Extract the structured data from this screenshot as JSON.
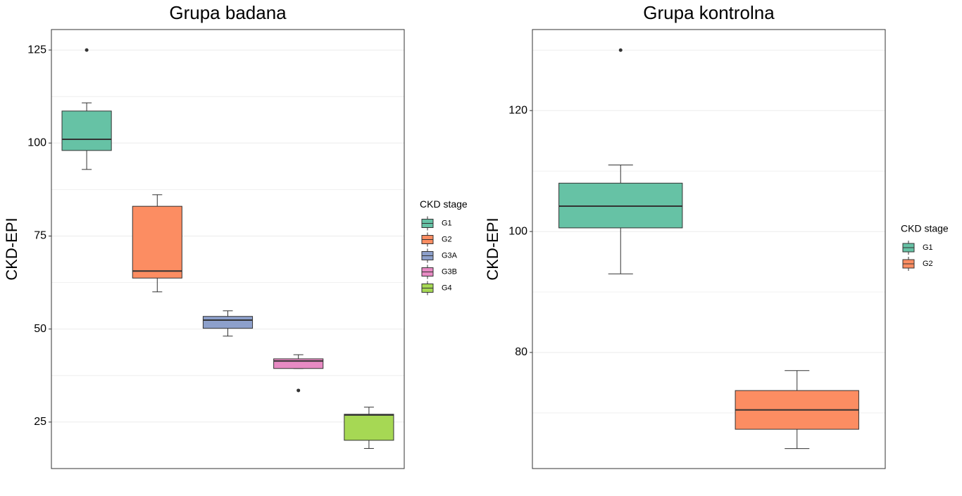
{
  "chart_data": [
    {
      "type": "boxplot",
      "title": "Grupa badana",
      "ylabel": "CKD-EPI",
      "legend_title": "CKD stage",
      "ylim": [
        12.5,
        130.5
      ],
      "yticks": [
        25,
        50,
        75,
        100,
        125
      ],
      "grid": true,
      "series": [
        {
          "name": "G1",
          "color": "#66c2a5",
          "min": 92.9,
          "q1": 98,
          "median": 101,
          "q3": 108.6,
          "max": 110.8,
          "outliers": [
            125
          ]
        },
        {
          "name": "G2",
          "color": "#fc8d62",
          "min": 60,
          "q1": 63.7,
          "median": 65.6,
          "q3": 83,
          "max": 86.1,
          "outliers": []
        },
        {
          "name": "G3A",
          "color": "#8da0cb",
          "min": 48.1,
          "q1": 50.2,
          "median": 52.4,
          "q3": 53.4,
          "max": 54.9,
          "outliers": []
        },
        {
          "name": "G3B",
          "color": "#e78ac3",
          "min": 39.4,
          "q1": 39.4,
          "median": 41.4,
          "q3": 42,
          "max": 43.1,
          "outliers": [
            33.5
          ]
        },
        {
          "name": "G4",
          "color": "#a6d854",
          "min": 17.9,
          "q1": 20.1,
          "median": 26.9,
          "q3": 27.1,
          "max": 29,
          "outliers": []
        }
      ]
    },
    {
      "type": "boxplot",
      "title": "Grupa kontrolna",
      "ylabel": "CKD-EPI",
      "legend_title": "CKD stage",
      "ylim": [
        60.8,
        133.4
      ],
      "yticks": [
        80,
        100,
        120
      ],
      "grid": true,
      "series": [
        {
          "name": "G1",
          "color": "#66c2a5",
          "min": 93,
          "q1": 100.6,
          "median": 104.2,
          "q3": 108,
          "max": 111,
          "outliers": [
            130
          ]
        },
        {
          "name": "G2",
          "color": "#fc8d62",
          "min": 64.1,
          "q1": 67.3,
          "median": 70.5,
          "q3": 73.7,
          "max": 77,
          "outliers": []
        }
      ]
    }
  ]
}
